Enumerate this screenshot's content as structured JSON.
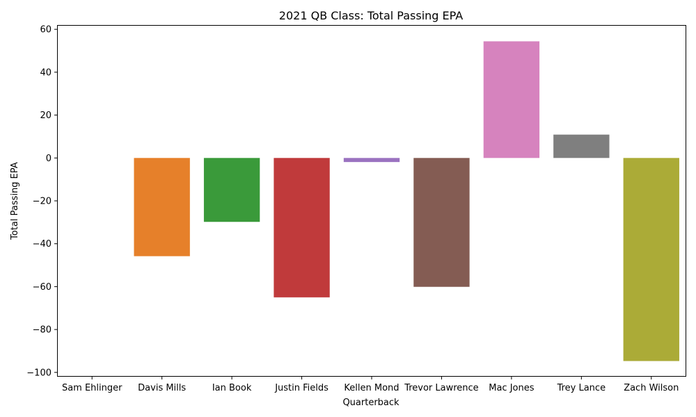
{
  "chart_data": {
    "type": "bar",
    "title": "2021 QB Class: Total Passing EPA",
    "xlabel": "Quarterback",
    "ylabel": "Total Passing EPA",
    "categories": [
      "Sam Ehlinger",
      "Davis Mills",
      "Ian Book",
      "Justin Fields",
      "Kellen Mond",
      "Trevor Lawrence",
      "Mac Jones",
      "Trey Lance",
      "Zach Wilson"
    ],
    "values": [
      0,
      -45.8,
      -29.8,
      -65.0,
      -1.9,
      -60.1,
      54.4,
      10.9,
      -94.7
    ],
    "colors": [
      "#1f77b4",
      "#e6802a",
      "#3a9a3a",
      "#c03a3b",
      "#9a72c0",
      "#845c53",
      "#d683be",
      "#7f7f7f",
      "#abab37"
    ],
    "ylim": [
      -102,
      62
    ],
    "yticks": [
      -100,
      -80,
      -60,
      -40,
      -20,
      0,
      20,
      40,
      60
    ],
    "ytick_labels": [
      "−100",
      "−80",
      "−60",
      "−40",
      "−20",
      "0",
      "20",
      "40",
      "60"
    ],
    "grid": false,
    "legend": "none"
  }
}
